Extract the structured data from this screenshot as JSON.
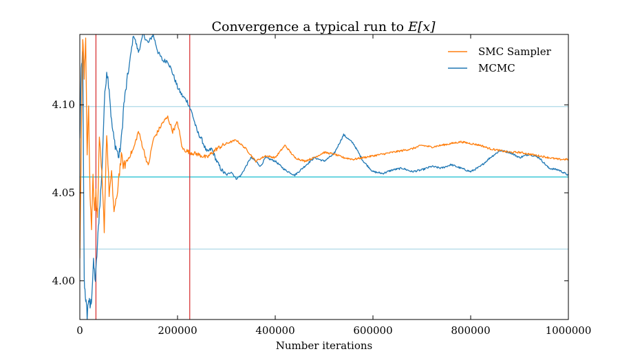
{
  "chart_data": {
    "type": "line",
    "title": "Convergence a typical run to ",
    "title_math": "E[x]",
    "xlabel": "Number iterations",
    "ylabel": "",
    "xlim": [
      0,
      1000000
    ],
    "ylim": [
      3.978,
      4.14
    ],
    "x_ticks": [
      0,
      200000,
      400000,
      600000,
      800000,
      1000000
    ],
    "x_tick_labels": [
      "0",
      "200000",
      "400000",
      "600000",
      "800000",
      "1000000"
    ],
    "y_ticks": [
      4.0,
      4.05,
      4.1
    ],
    "y_tick_labels": [
      "4.00",
      "4.05",
      "4.10"
    ],
    "legend_position": "top-right",
    "grid": false,
    "horizontal_reference_lines": [
      {
        "y": 4.099,
        "color": "#add8e6"
      },
      {
        "y": 4.059,
        "color": "#17becf"
      },
      {
        "y": 4.018,
        "color": "#add8e6"
      }
    ],
    "vertical_reference_lines": [
      {
        "x": 33000,
        "color": "#d62728"
      },
      {
        "x": 225000,
        "color": "#d62728"
      }
    ],
    "series": [
      {
        "name": "SMC Sampler",
        "color": "#ff7f0e",
        "x": [
          0,
          3000,
          6000,
          9000,
          12000,
          15000,
          18000,
          21000,
          24000,
          27000,
          30000,
          33000,
          36000,
          40000,
          45000,
          50000,
          55000,
          60000,
          65000,
          70000,
          75000,
          80000,
          85000,
          90000,
          100000,
          110000,
          120000,
          130000,
          140000,
          150000,
          160000,
          170000,
          180000,
          190000,
          200000,
          210000,
          225000,
          240000,
          260000,
          280000,
          300000,
          320000,
          340000,
          360000,
          380000,
          400000,
          420000,
          440000,
          460000,
          480000,
          500000,
          520000,
          540000,
          560000,
          580000,
          600000,
          620000,
          640000,
          660000,
          680000,
          700000,
          720000,
          740000,
          760000,
          780000,
          800000,
          820000,
          840000,
          860000,
          880000,
          900000,
          920000,
          940000,
          960000,
          980000,
          1000000
        ],
        "values": [
          4.01,
          4.08,
          4.14,
          4.115,
          4.14,
          4.07,
          4.1,
          4.05,
          4.03,
          4.06,
          4.04,
          4.05,
          4.035,
          4.08,
          4.06,
          4.03,
          4.085,
          4.05,
          4.06,
          4.04,
          4.045,
          4.06,
          4.07,
          4.065,
          4.07,
          4.075,
          4.085,
          4.075,
          4.065,
          4.08,
          4.085,
          4.09,
          4.093,
          4.085,
          4.09,
          4.075,
          4.073,
          4.072,
          4.07,
          4.075,
          4.078,
          4.08,
          4.075,
          4.068,
          4.071,
          4.07,
          4.077,
          4.07,
          4.068,
          4.07,
          4.073,
          4.072,
          4.07,
          4.069,
          4.07,
          4.071,
          4.072,
          4.073,
          4.074,
          4.075,
          4.077,
          4.076,
          4.077,
          4.078,
          4.079,
          4.078,
          4.077,
          4.075,
          4.074,
          4.073,
          4.073,
          4.072,
          4.071,
          4.07,
          4.069,
          4.069
        ]
      },
      {
        "name": "MCMC",
        "color": "#1f77b4",
        "x": [
          0,
          3000,
          6000,
          9000,
          12000,
          15000,
          18000,
          21000,
          24000,
          28000,
          32000,
          36000,
          40000,
          45000,
          50000,
          55000,
          60000,
          65000,
          70000,
          75000,
          80000,
          85000,
          90000,
          100000,
          110000,
          120000,
          130000,
          140000,
          150000,
          160000,
          170000,
          180000,
          190000,
          200000,
          210000,
          220000,
          230000,
          240000,
          250000,
          260000,
          270000,
          280000,
          290000,
          300000,
          310000,
          320000,
          330000,
          340000,
          350000,
          360000,
          370000,
          380000,
          400000,
          420000,
          440000,
          460000,
          480000,
          500000,
          520000,
          540000,
          560000,
          580000,
          600000,
          620000,
          640000,
          660000,
          680000,
          700000,
          720000,
          740000,
          760000,
          780000,
          800000,
          820000,
          840000,
          860000,
          880000,
          900000,
          920000,
          940000,
          960000,
          980000,
          1000000
        ],
        "values": [
          4.08,
          4.12,
          4.13,
          4.0,
          3.99,
          3.98,
          3.99,
          3.985,
          3.99,
          4.01,
          4.0,
          4.02,
          4.04,
          4.06,
          4.1,
          4.12,
          4.11,
          4.09,
          4.08,
          4.075,
          4.07,
          4.08,
          4.1,
          4.12,
          4.14,
          4.13,
          4.14,
          4.135,
          4.14,
          4.13,
          4.125,
          4.125,
          4.118,
          4.11,
          4.105,
          4.102,
          4.095,
          4.085,
          4.08,
          4.073,
          4.075,
          4.068,
          4.063,
          4.06,
          4.062,
          4.058,
          4.06,
          4.065,
          4.07,
          4.068,
          4.065,
          4.07,
          4.068,
          4.063,
          4.06,
          4.065,
          4.07,
          4.068,
          4.072,
          4.083,
          4.078,
          4.068,
          4.062,
          4.061,
          4.063,
          4.064,
          4.062,
          4.063,
          4.065,
          4.064,
          4.066,
          4.064,
          4.062,
          4.065,
          4.07,
          4.074,
          4.073,
          4.07,
          4.072,
          4.07,
          4.064,
          4.063,
          4.06
        ]
      }
    ]
  }
}
